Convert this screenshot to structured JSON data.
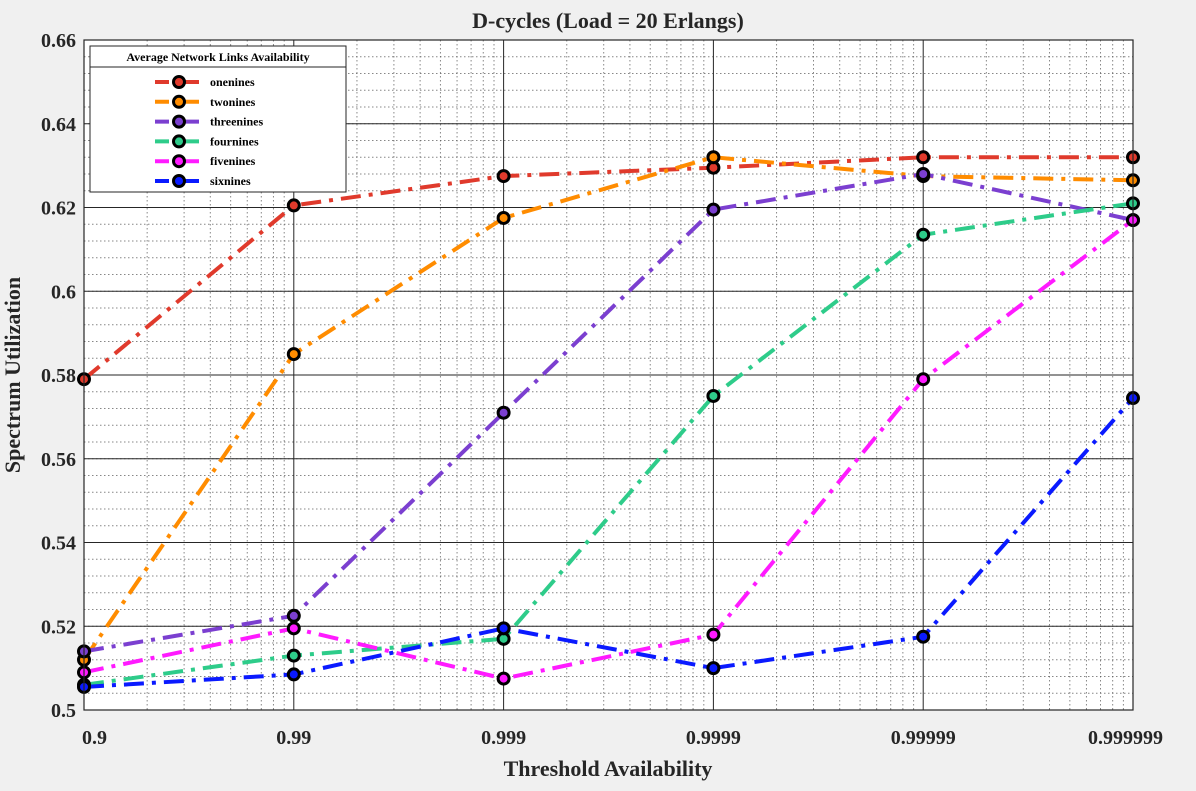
{
  "chart_data": {
    "type": "line",
    "title": "D-cycles (Load  = 20 Erlangs)",
    "xlabel": "Threshold Availability",
    "ylabel": "Spectrum Utilization",
    "x_scale": "log-nines",
    "x": [
      "0.9",
      "0.99",
      "0.999",
      "0.9999",
      "0.99999",
      "0.999999"
    ],
    "ylim": [
      0.5,
      0.66
    ],
    "yticks": [
      "0.5",
      "0.52",
      "0.54",
      "0.56",
      "0.58",
      "0.6",
      "0.62",
      "0.64",
      "0.66"
    ],
    "grid": true,
    "minor_grid": true,
    "legend": {
      "title": "Average Network Links Availability",
      "placement": "top-left"
    },
    "series": [
      {
        "name": "onenines",
        "color": "#e03a2c",
        "values": [
          0.579,
          0.6205,
          0.6275,
          0.6295,
          0.632,
          0.632
        ]
      },
      {
        "name": "twonines",
        "color": "#ff8c00",
        "values": [
          0.512,
          0.585,
          0.6175,
          0.632,
          0.6275,
          0.6265
        ]
      },
      {
        "name": "threenines",
        "color": "#7b3fd0",
        "values": [
          0.514,
          0.5225,
          0.571,
          0.6195,
          0.628,
          0.617
        ]
      },
      {
        "name": "fournines",
        "color": "#2ecc8a",
        "values": [
          0.506,
          0.513,
          0.517,
          0.575,
          0.6135,
          0.621
        ]
      },
      {
        "name": "fivenines",
        "color": "#ff1aff",
        "values": [
          0.509,
          0.5195,
          0.5075,
          0.518,
          0.579,
          0.617
        ]
      },
      {
        "name": "sixnines",
        "color": "#0a1aff",
        "values": [
          0.5055,
          0.5085,
          0.5195,
          0.51,
          0.5175,
          0.5745
        ]
      }
    ]
  }
}
